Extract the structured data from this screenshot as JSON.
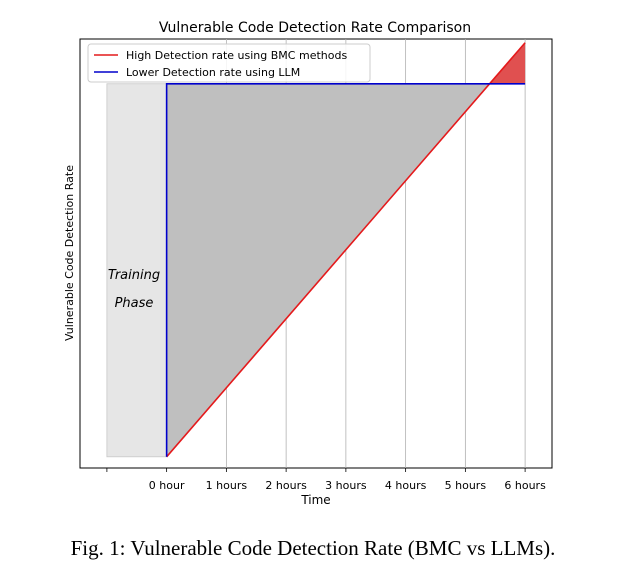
{
  "chart_data": {
    "type": "line",
    "title": "Vulnerable Code Detection Rate Comparison",
    "xlabel": "Time",
    "ylabel": "Vulnerable Code Detection Rate",
    "x_ticks": [
      "",
      "0 hour",
      "1 hours",
      "2 hours",
      "3 hours",
      "4 hours",
      "5 hours",
      "6 hours"
    ],
    "x_tick_values": [
      -1,
      0,
      1,
      2,
      3,
      4,
      5,
      6
    ],
    "xlim": [
      -1.45,
      6.45
    ],
    "ylim": [
      -0.03,
      1.12
    ],
    "grid": "vertical",
    "legend_position": "top-left",
    "series": [
      {
        "name": "High Detection rate using BMC methods",
        "color": "#e41a1c",
        "x": [
          0,
          6
        ],
        "y": [
          0.0,
          1.11
        ]
      },
      {
        "name": "Lower Detection rate using LLM",
        "color": "#0000cc",
        "x": [
          0,
          0,
          6
        ],
        "y": [
          0.0,
          1.0,
          1.0
        ]
      }
    ],
    "annotations": [
      {
        "text_line1": "Training",
        "text_line2": "Phase",
        "region_x": [
          -1,
          0
        ],
        "region_y": [
          0.0,
          1.0
        ]
      }
    ],
    "fills": {
      "gap_color": "#bfbfbf",
      "excess_color": "#e05050",
      "training_color": "#e6e6e6"
    }
  },
  "caption": "Fig. 1: Vulnerable Code Detection Rate (BMC vs LLMs)."
}
